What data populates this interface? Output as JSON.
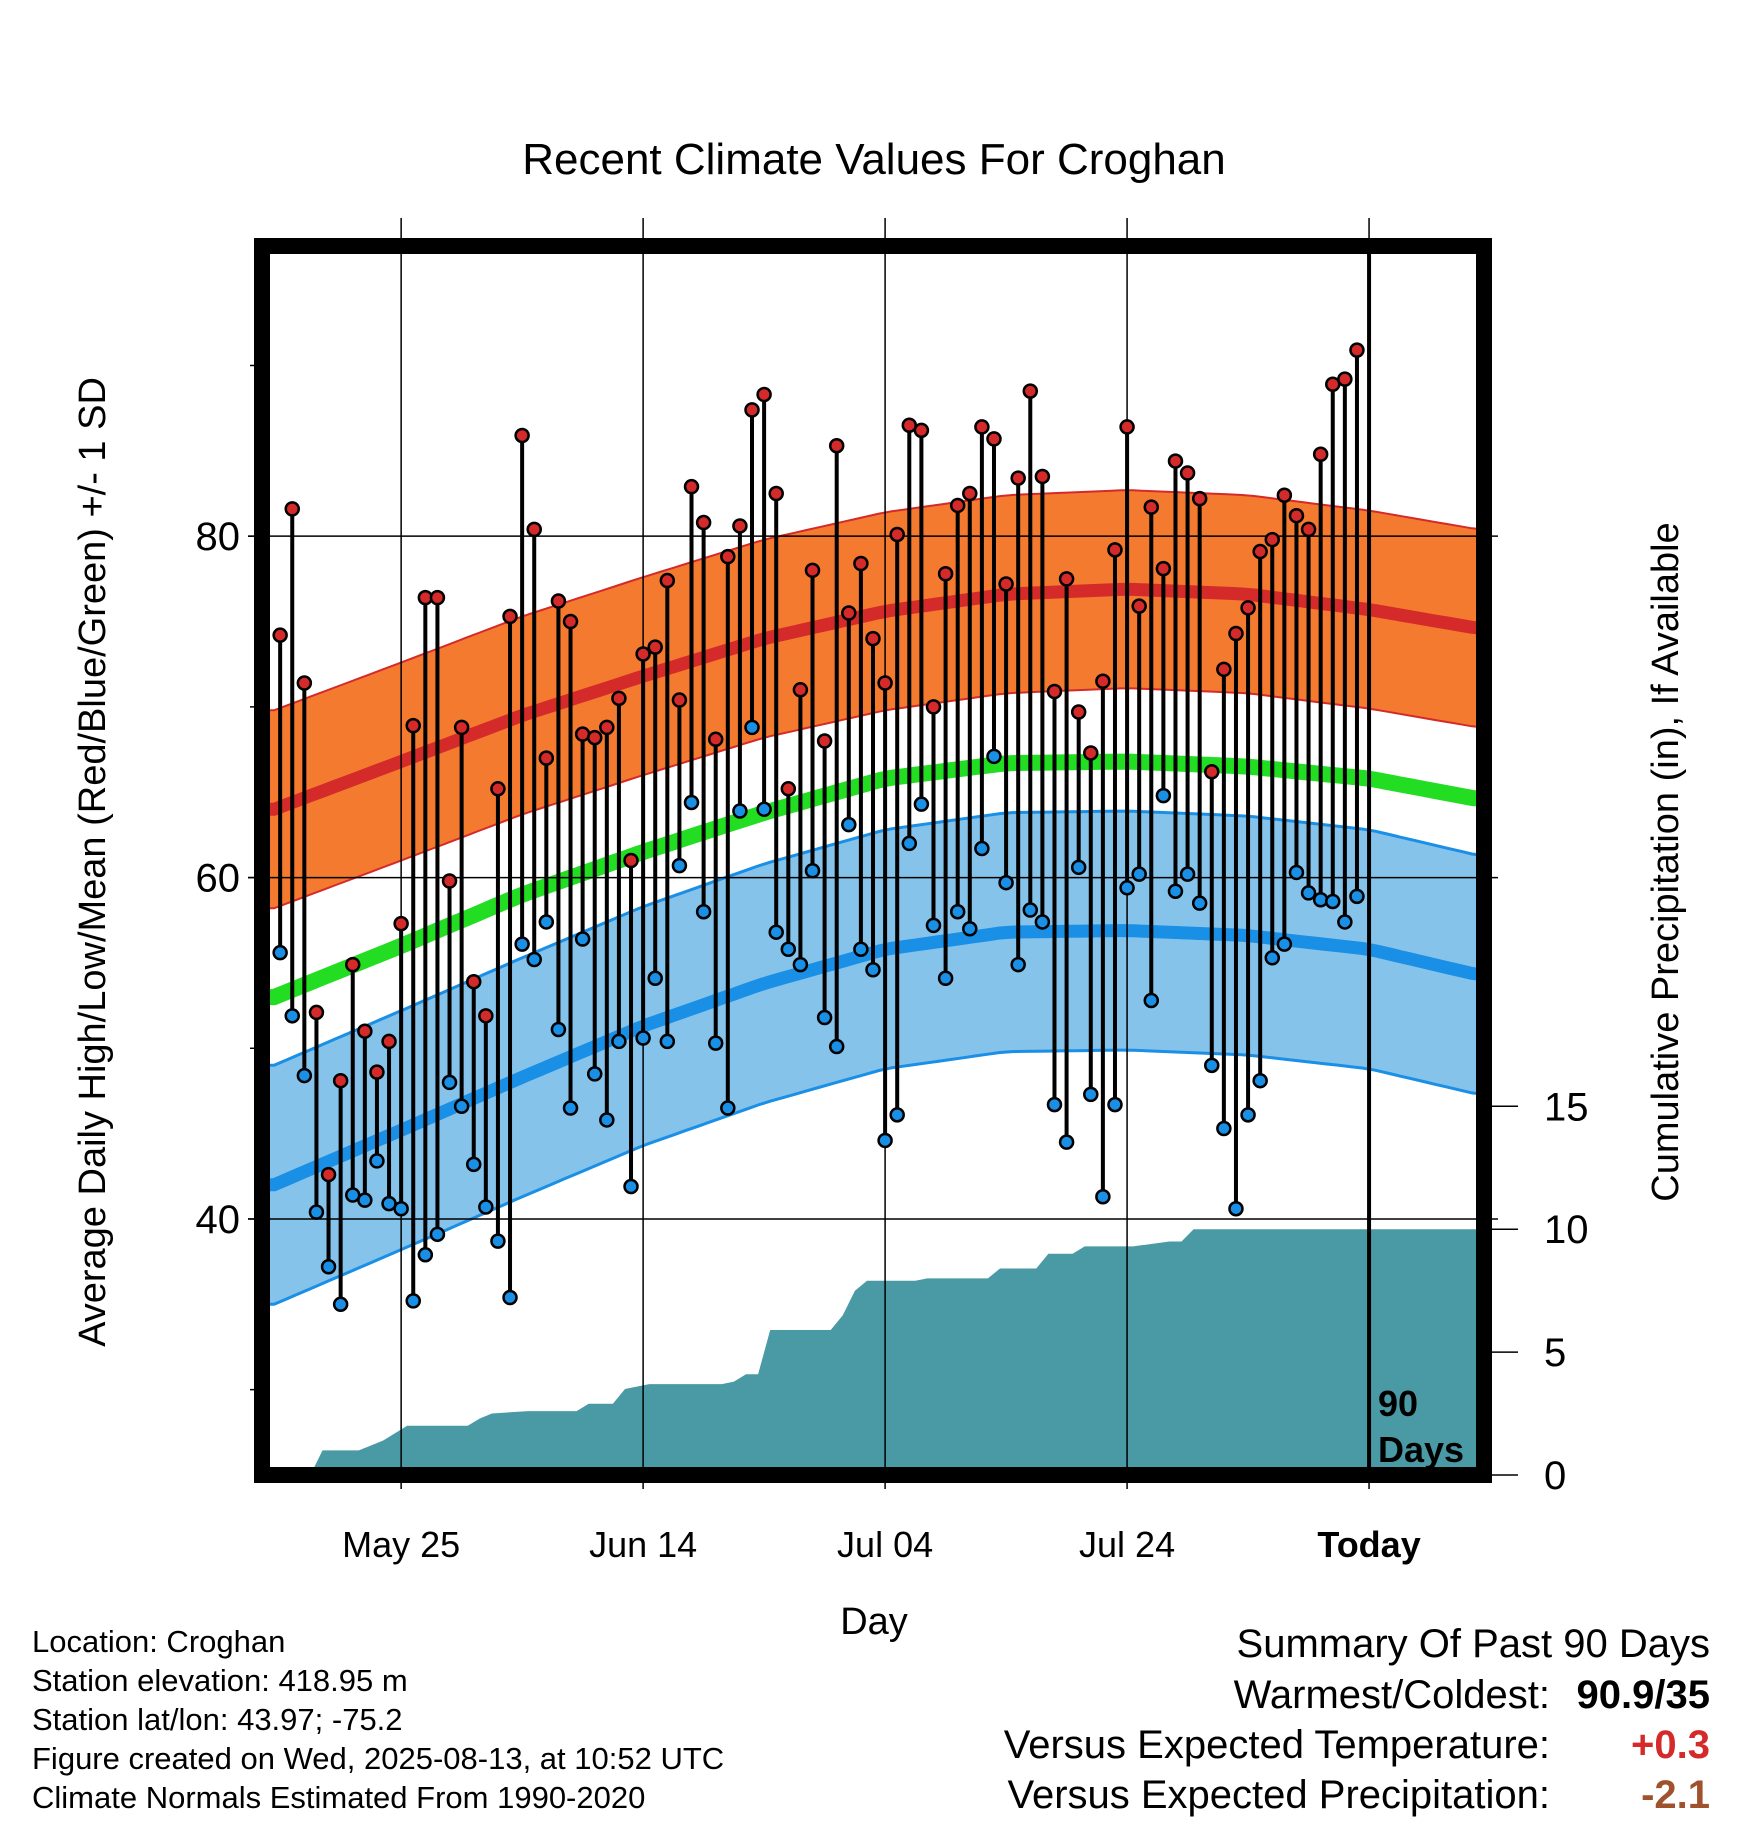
{
  "chart_data": {
    "type": "line",
    "title": "Recent Climate Values For Croghan",
    "xlabel": "Day",
    "ylabel": "Average Daily High/Low/Mean (Red/Blue/Green) +/- 1 SD",
    "y2label": "Cumulative Precipitation (in), If Available",
    "x_tick_labels": [
      "May 25",
      "Jun 14",
      "Jul 04",
      "Jul 24",
      "Today"
    ],
    "y_ticks": [
      40,
      60,
      80
    ],
    "y2_ticks": [
      0,
      5,
      10,
      15
    ],
    "ylim": [
      25,
      97
    ],
    "y2lim": [
      0,
      50
    ],
    "xlim_days": [
      -91.5,
      9.5
    ],
    "grid": true,
    "annotation": "90 Days",
    "normals": {
      "high_mean": [
        [
          -90.5,
          64.0
        ],
        [
          -80,
          66.8
        ],
        [
          -70,
          69.5
        ],
        [
          -60,
          71.8
        ],
        [
          -50,
          74.0
        ],
        [
          -40,
          75.6
        ],
        [
          -30,
          76.6
        ],
        [
          -20,
          76.9
        ],
        [
          -10,
          76.6
        ],
        [
          0,
          75.7
        ],
        [
          9,
          74.6
        ]
      ],
      "high_sd": 5.8,
      "low_mean": [
        [
          -90.5,
          42.0
        ],
        [
          -80,
          45.2
        ],
        [
          -70,
          48.3
        ],
        [
          -60,
          51.3
        ],
        [
          -50,
          53.8
        ],
        [
          -40,
          55.8
        ],
        [
          -30,
          56.8
        ],
        [
          -20,
          56.9
        ],
        [
          -10,
          56.6
        ],
        [
          0,
          55.8
        ],
        [
          9,
          54.3
        ]
      ],
      "low_sd": 7.0,
      "avg_mean": [
        [
          -90.5,
          53.0
        ],
        [
          -80,
          56.0
        ],
        [
          -70,
          59.0
        ],
        [
          -60,
          61.5
        ],
        [
          -50,
          63.8
        ],
        [
          -40,
          65.8
        ],
        [
          -30,
          66.7
        ],
        [
          -20,
          66.8
        ],
        [
          -10,
          66.5
        ],
        [
          0,
          65.8
        ],
        [
          9,
          64.6
        ]
      ]
    },
    "series": [
      {
        "name": "High",
        "color": "#d42a2a",
        "values": [
          74.2,
          81.6,
          71.4,
          52.1,
          42.6,
          48.1,
          54.9,
          51.0,
          48.6,
          50.4,
          57.3,
          68.9,
          76.4,
          76.4,
          59.8,
          68.8,
          53.9,
          51.9,
          65.2,
          75.3,
          85.9,
          80.4,
          67.0,
          76.2,
          75.0,
          68.4,
          68.2,
          68.8,
          70.5,
          61.0,
          73.1,
          73.5,
          77.4,
          70.4,
          82.9,
          80.8,
          68.1,
          78.8,
          80.6,
          87.4,
          88.3,
          82.5,
          65.2,
          71.0,
          78.0,
          68.0,
          85.3,
          75.5,
          78.4,
          74.0,
          71.4,
          80.1,
          86.5,
          86.2,
          70.0,
          77.8,
          81.8,
          82.5,
          86.4,
          85.7,
          77.2,
          83.4,
          88.5,
          83.5,
          70.9,
          77.5,
          69.7,
          67.3,
          71.5,
          79.2,
          86.4,
          75.9,
          81.7,
          78.1,
          84.4,
          83.7,
          82.2,
          66.2,
          72.2,
          74.3,
          75.8,
          79.1,
          79.8,
          82.4,
          81.2,
          80.4,
          84.8,
          88.9,
          89.2,
          90.9
        ]
      },
      {
        "name": "Low",
        "color": "#1a8fe6",
        "values": [
          55.6,
          51.9,
          48.4,
          40.4,
          37.2,
          35.0,
          41.4,
          41.1,
          43.4,
          40.9,
          40.6,
          35.2,
          37.9,
          39.1,
          48.0,
          46.6,
          43.2,
          40.7,
          38.7,
          35.4,
          56.1,
          55.2,
          57.4,
          51.1,
          46.5,
          56.4,
          48.5,
          45.8,
          50.4,
          41.9,
          50.6,
          54.1,
          50.4,
          60.7,
          64.4,
          58.0,
          50.3,
          46.5,
          63.9,
          68.8,
          64.0,
          56.8,
          55.8,
          54.9,
          60.4,
          51.8,
          50.1,
          63.1,
          55.8,
          54.6,
          44.6,
          46.1,
          62.0,
          64.3,
          57.2,
          54.1,
          58.0,
          57.0,
          61.7,
          67.1,
          59.7,
          54.9,
          58.1,
          57.4,
          46.7,
          44.5,
          60.6,
          47.3,
          41.3,
          46.7,
          59.4,
          60.2,
          52.8,
          64.8,
          59.2,
          60.2,
          58.5,
          49.0,
          45.3,
          40.6,
          46.1,
          48.1,
          55.3,
          56.1,
          60.3,
          59.1,
          58.7,
          58.6,
          57.4,
          58.9
        ]
      }
    ],
    "precip_cumulative_steps": [
      [
        -87.5,
        0.0
      ],
      [
        -86.5,
        1.0
      ],
      [
        -83.5,
        1.0
      ],
      [
        -82.5,
        1.2
      ],
      [
        -81.5,
        1.4
      ],
      [
        -79.5,
        2.0
      ],
      [
        -78.5,
        2.0
      ],
      [
        -74.5,
        2.0
      ],
      [
        -73.5,
        2.3
      ],
      [
        -72.5,
        2.5
      ],
      [
        -69.5,
        2.6
      ],
      [
        -65.5,
        2.6
      ],
      [
        -64.5,
        2.9
      ],
      [
        -62.5,
        2.9
      ],
      [
        -61.5,
        3.5
      ],
      [
        -59.5,
        3.7
      ],
      [
        -53.5,
        3.7
      ],
      [
        -52.5,
        3.8
      ],
      [
        -51.5,
        4.1
      ],
      [
        -50.5,
        4.1
      ],
      [
        -49.5,
        5.9
      ],
      [
        -44.5,
        5.9
      ],
      [
        -43.5,
        6.5
      ],
      [
        -42.5,
        7.5
      ],
      [
        -41.5,
        7.9
      ],
      [
        -37.5,
        7.9
      ],
      [
        -36.5,
        8.0
      ],
      [
        -31.5,
        8.0
      ],
      [
        -30.5,
        8.4
      ],
      [
        -27.5,
        8.4
      ],
      [
        -26.5,
        9.0
      ],
      [
        -24.5,
        9.0
      ],
      [
        -23.5,
        9.3
      ],
      [
        -20.5,
        9.3
      ],
      [
        -19.5,
        9.3
      ],
      [
        -16.5,
        9.5
      ],
      [
        -15.5,
        9.5
      ],
      [
        -14.5,
        10.0
      ],
      [
        9.5,
        10.0
      ]
    ]
  },
  "info": {
    "location": "Location: Croghan",
    "elevation": "Station elevation: 418.95 m",
    "latlon": "Station lat/lon: 43.97; -75.2",
    "created": "Figure created on Wed, 2025-08-13, at 10:52 UTC",
    "normals": "Climate Normals Estimated From 1990-2020"
  },
  "summary": {
    "title": "Summary Of Past 90 Days",
    "warmest_coldest_label": "Warmest/Coldest:",
    "warmest_coldest_value": "90.9/35",
    "temp_label": "Versus Expected Temperature:",
    "temp_value": "+0.3",
    "temp_color": "#d42a2a",
    "precip_label": "Versus Expected Precipitation:",
    "precip_value": "-2.1",
    "precip_color": "#a0522d"
  }
}
